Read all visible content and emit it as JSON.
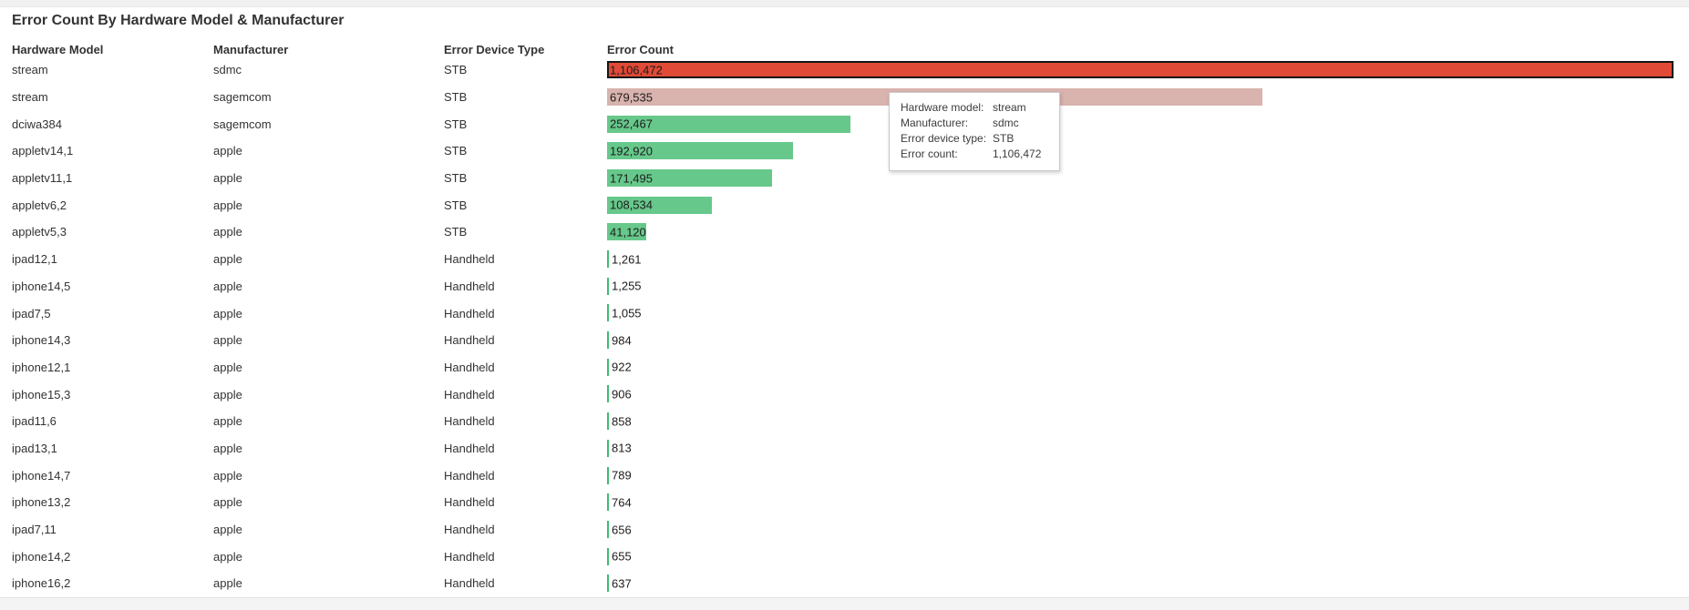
{
  "panel": {
    "title": "Error Count By Hardware Model & Manufacturer"
  },
  "table": {
    "columns": [
      "Hardware Model",
      "Manufacturer",
      "Error Device Type",
      "Error Count"
    ],
    "rows": [
      {
        "hardware_model": "stream",
        "manufacturer": "sdmc",
        "error_device_type": "STB",
        "error_count": 1106472,
        "error_count_label": "1,106,472",
        "bar_color_key": "bar_red_highlight",
        "state": "hovered"
      },
      {
        "hardware_model": "stream",
        "manufacturer": "sagemcom",
        "error_device_type": "STB",
        "error_count": 679535,
        "error_count_label": "679,535",
        "bar_color_key": "bar_pink_dim"
      },
      {
        "hardware_model": "dciwa384",
        "manufacturer": "sagemcom",
        "error_device_type": "STB",
        "error_count": 252467,
        "error_count_label": "252,467",
        "bar_color_key": "bar_green"
      },
      {
        "hardware_model": "appletv14,1",
        "manufacturer": "apple",
        "error_device_type": "STB",
        "error_count": 192920,
        "error_count_label": "192,920",
        "bar_color_key": "bar_green"
      },
      {
        "hardware_model": "appletv11,1",
        "manufacturer": "apple",
        "error_device_type": "STB",
        "error_count": 171495,
        "error_count_label": "171,495",
        "bar_color_key": "bar_green"
      },
      {
        "hardware_model": "appletv6,2",
        "manufacturer": "apple",
        "error_device_type": "STB",
        "error_count": 108534,
        "error_count_label": "108,534",
        "bar_color_key": "bar_green"
      },
      {
        "hardware_model": "appletv5,3",
        "manufacturer": "apple",
        "error_device_type": "STB",
        "error_count": 41120,
        "error_count_label": "41,120",
        "bar_color_key": "bar_green"
      },
      {
        "hardware_model": "ipad12,1",
        "manufacturer": "apple",
        "error_device_type": "Handheld",
        "error_count": 1261,
        "error_count_label": "1,261",
        "bar_color_key": "bar_tick_green"
      },
      {
        "hardware_model": "iphone14,5",
        "manufacturer": "apple",
        "error_device_type": "Handheld",
        "error_count": 1255,
        "error_count_label": "1,255",
        "bar_color_key": "bar_tick_green"
      },
      {
        "hardware_model": "ipad7,5",
        "manufacturer": "apple",
        "error_device_type": "Handheld",
        "error_count": 1055,
        "error_count_label": "1,055",
        "bar_color_key": "bar_tick_green"
      },
      {
        "hardware_model": "iphone14,3",
        "manufacturer": "apple",
        "error_device_type": "Handheld",
        "error_count": 984,
        "error_count_label": "984",
        "bar_color_key": "bar_tick_green"
      },
      {
        "hardware_model": "iphone12,1",
        "manufacturer": "apple",
        "error_device_type": "Handheld",
        "error_count": 922,
        "error_count_label": "922",
        "bar_color_key": "bar_tick_green"
      },
      {
        "hardware_model": "iphone15,3",
        "manufacturer": "apple",
        "error_device_type": "Handheld",
        "error_count": 906,
        "error_count_label": "906",
        "bar_color_key": "bar_tick_green"
      },
      {
        "hardware_model": "ipad11,6",
        "manufacturer": "apple",
        "error_device_type": "Handheld",
        "error_count": 858,
        "error_count_label": "858",
        "bar_color_key": "bar_tick_green"
      },
      {
        "hardware_model": "ipad13,1",
        "manufacturer": "apple",
        "error_device_type": "Handheld",
        "error_count": 813,
        "error_count_label": "813",
        "bar_color_key": "bar_tick_green"
      },
      {
        "hardware_model": "iphone14,7",
        "manufacturer": "apple",
        "error_device_type": "Handheld",
        "error_count": 789,
        "error_count_label": "789",
        "bar_color_key": "bar_tick_green"
      },
      {
        "hardware_model": "iphone13,2",
        "manufacturer": "apple",
        "error_device_type": "Handheld",
        "error_count": 764,
        "error_count_label": "764",
        "bar_color_key": "bar_tick_green"
      },
      {
        "hardware_model": "ipad7,11",
        "manufacturer": "apple",
        "error_device_type": "Handheld",
        "error_count": 656,
        "error_count_label": "656",
        "bar_color_key": "bar_tick_green"
      },
      {
        "hardware_model": "iphone14,2",
        "manufacturer": "apple",
        "error_device_type": "Handheld",
        "error_count": 655,
        "error_count_label": "655",
        "bar_color_key": "bar_tick_green"
      },
      {
        "hardware_model": "iphone16,2",
        "manufacturer": "apple",
        "error_device_type": "Handheld",
        "error_count": 637,
        "error_count_label": "637",
        "bar_color_key": "bar_tick_green"
      }
    ]
  },
  "tooltip": {
    "rows": [
      {
        "label": "Hardware model:",
        "value": "stream"
      },
      {
        "label": "Manufacturer:",
        "value": "sdmc"
      },
      {
        "label": "Error device type:",
        "value": "STB"
      },
      {
        "label": "Error count:",
        "value": "1,106,472"
      }
    ]
  },
  "colors": {
    "bar_red_highlight": "#e04a36",
    "bar_red_border": "#161616",
    "bar_pink_dim": "#d9b3ae",
    "bar_green": "#67c88b",
    "bar_tick_green": "#3fbb75",
    "title_text": "#333333",
    "page_strip": "#f2f2f2"
  },
  "chart_data": {
    "type": "bar",
    "orientation": "horizontal",
    "title": "Error Count By Hardware Model & Manufacturer",
    "xlabel": "Error Count",
    "ylabel": "Hardware Model & Manufacturer",
    "xlim": [
      0,
      1106472
    ],
    "grid": false,
    "legend": false,
    "highlighted_bar_index": 0,
    "dimmed_bar_index": 1,
    "categories": [
      "stream (sdmc, STB)",
      "stream (sagemcom, STB)",
      "dciwa384 (sagemcom, STB)",
      "appletv14,1 (apple, STB)",
      "appletv11,1 (apple, STB)",
      "appletv6,2 (apple, STB)",
      "appletv5,3 (apple, STB)",
      "ipad12,1 (apple, Handheld)",
      "iphone14,5 (apple, Handheld)",
      "ipad7,5 (apple, Handheld)",
      "iphone14,3 (apple, Handheld)",
      "iphone12,1 (apple, Handheld)",
      "iphone15,3 (apple, Handheld)",
      "ipad11,6 (apple, Handheld)",
      "ipad13,1 (apple, Handheld)",
      "iphone14,7 (apple, Handheld)",
      "iphone13,2 (apple, Handheld)",
      "ipad7,11 (apple, Handheld)",
      "iphone14,2 (apple, Handheld)",
      "iphone16,2 (apple, Handheld)"
    ],
    "values": [
      1106472,
      679535,
      252467,
      192920,
      171495,
      108534,
      41120,
      1261,
      1255,
      1055,
      984,
      922,
      906,
      858,
      813,
      789,
      764,
      656,
      655,
      637
    ]
  }
}
